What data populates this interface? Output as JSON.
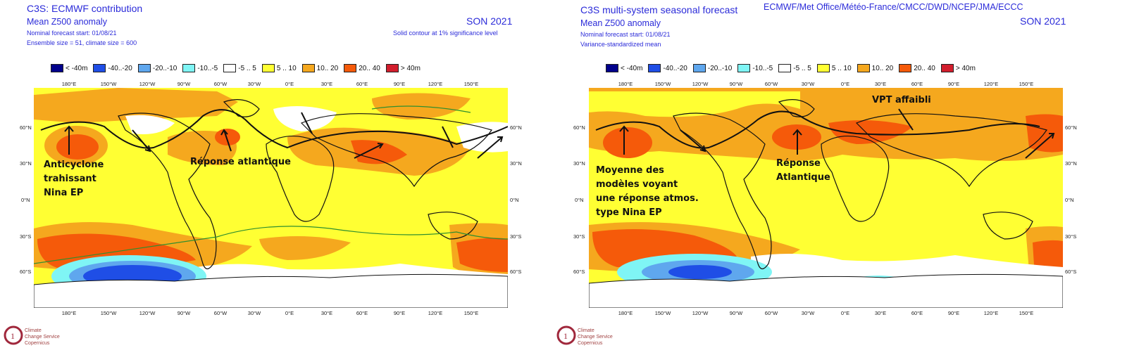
{
  "colors": {
    "header_text": "#2b2bd9",
    "ocean_default": "#ffff33",
    "land_gray": "#bdbdbd",
    "coast": "#111111",
    "contour_green": "#2f8f2f"
  },
  "legend": [
    {
      "label": "< -40m",
      "color": "#00008b"
    },
    {
      "label": "-40..-20",
      "color": "#1f4ee6"
    },
    {
      "label": "-20..-10",
      "color": "#5fa7ee"
    },
    {
      "label": "-10..-5",
      "color": "#7ff5f5"
    },
    {
      "label": "-5 .. 5",
      "color": "#ffffff"
    },
    {
      "label": "5 .. 10",
      "color": "#ffff33"
    },
    {
      "label": "10.. 20",
      "color": "#f5a81e"
    },
    {
      "label": "20.. 40",
      "color": "#f55a0a"
    },
    {
      "label": "> 40m",
      "color": "#d21e2d"
    }
  ],
  "lon_labels": [
    "180°E",
    "150°W",
    "120°W",
    "90°W",
    "60°W",
    "30°W",
    "0°E",
    "30°E",
    "60°E",
    "90°E",
    "120°E",
    "150°E"
  ],
  "lat_labels": [
    "60°N",
    "30°N",
    "0°N",
    "30°S",
    "60°S"
  ],
  "left": {
    "title": "C3S: ECMWF contribution",
    "subtitle": "Mean Z500 anomaly",
    "line3": "Nominal forecast start: 01/08/21",
    "line4": "Ensemble size = 51, climate size = 600",
    "season": "SON 2021",
    "note": "Solid contour at 1% significance level",
    "ann1": "Anticyclone",
    "ann2": "trahissant",
    "ann3": "Nina EP",
    "ann4": "Réponse atlantique"
  },
  "right": {
    "title": "C3S multi-system seasonal forecast",
    "subtitle": "Mean Z500 anomaly",
    "line3": "Nominal forecast start: 01/08/21",
    "line4": "Variance-standardized mean",
    "centres": "ECMWF/Met Office/Météo-France/CMCC/DWD/NCEP/JMA/ECCC",
    "season": "SON 2021",
    "ann1": "Moyenne des",
    "ann2": "modèles voyant",
    "ann3": "une réponse atmos.",
    "ann4": "type Nina EP",
    "ann5": "Réponse",
    "ann6": "Atlantique",
    "ann7": "VPT affaibli"
  },
  "logo": {
    "line1": "Climate",
    "line2": "Change Service",
    "line3": "Copernicus"
  }
}
